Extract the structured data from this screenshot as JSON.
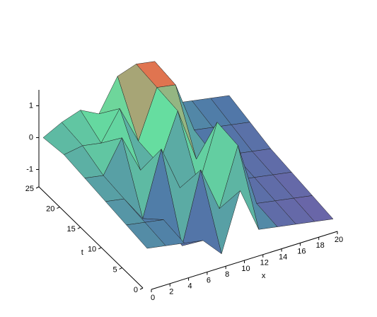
{
  "chart_data": {
    "type": "surface",
    "x": [
      0,
      2,
      4,
      6,
      8,
      10,
      12,
      14,
      16,
      18,
      20
    ],
    "t": [
      0,
      5,
      10,
      15,
      20,
      25
    ],
    "z": [
      [
        -0.3,
        -0.4,
        -0.5,
        -0.6,
        -1.2,
        0.6,
        -0.8,
        -0.9,
        -1.0,
        -1.1,
        -1.2
      ],
      [
        -0.2,
        -0.3,
        -0.4,
        -1.4,
        0.8,
        -0.6,
        1.2,
        -0.8,
        -0.9,
        -1.0,
        -1.1
      ],
      [
        -0.1,
        -0.2,
        -1.0,
        1.0,
        -0.4,
        -0.5,
        1.3,
        -0.7,
        -0.8,
        -0.9,
        -1.0
      ],
      [
        0.0,
        -0.1,
        0.9,
        -0.3,
        -0.3,
        1.2,
        -0.5,
        -0.6,
        -0.7,
        -0.8,
        -0.9
      ],
      [
        0.1,
        0.2,
        0.1,
        1.0,
        -0.2,
        1.3,
        1.2,
        -0.4,
        -0.5,
        -0.6,
        -0.7
      ],
      [
        0.0,
        0.3,
        0.5,
        0.2,
        1.2,
        1.4,
        1.3,
        -0.2,
        -0.3,
        -0.4,
        -0.5
      ]
    ],
    "xlim": [
      0,
      20
    ],
    "ylim": [
      0,
      25
    ],
    "zlim": [
      -1.5,
      1.5
    ],
    "xticks": [
      0,
      2,
      4,
      6,
      8,
      10,
      12,
      14,
      16,
      18,
      20
    ],
    "yticks": [
      0,
      5,
      10,
      15,
      20,
      25
    ],
    "zticks": [
      -1,
      0,
      1
    ],
    "xlabel": "x",
    "ylabel": "t",
    "colormap": [
      "#7a5aa8",
      "#4f78a8",
      "#66dda0",
      "#ff5a3c"
    ]
  }
}
